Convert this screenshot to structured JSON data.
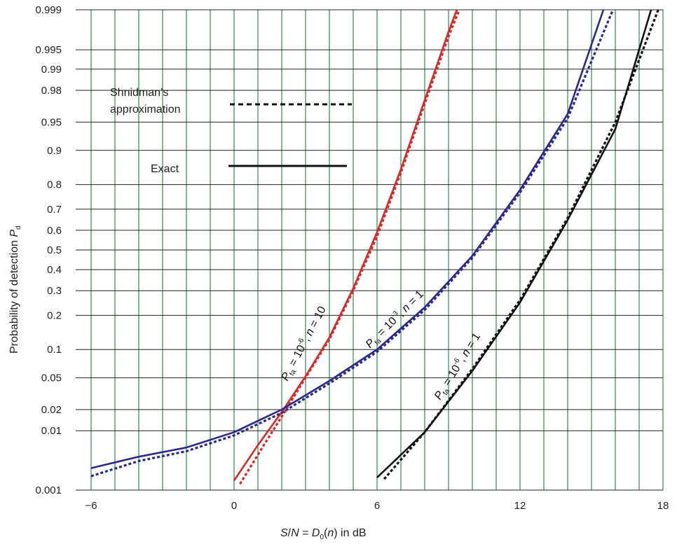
{
  "chart_data": {
    "type": "line",
    "xlabel": {
      "italic_main": "S",
      "sep": "/",
      "italic_n": "N",
      "eq": " = ",
      "d": "D",
      "d_sub": "0",
      "open": "(",
      "arg": "n",
      "close": ") in dB"
    },
    "ylabel": {
      "text": "Probability of detection ",
      "p": "P",
      "p_sub": "d"
    },
    "xlim": [
      -6,
      18
    ],
    "x_ticks": [
      "-6",
      "0",
      "6",
      "12",
      "18"
    ],
    "x_tick_values": [
      -6,
      0,
      6,
      12,
      18
    ],
    "y_ticks": [
      "0.001",
      "0.01",
      "0.02",
      "0.05",
      "0.1",
      "0.2",
      "0.3",
      "0.4",
      "0.5",
      "0.6",
      "0.7",
      "0.8",
      "0.9",
      "0.95",
      "0.98",
      "0.99",
      "0.995",
      "0.999"
    ],
    "y_scale": "normal-probability",
    "grid": true,
    "legend": {
      "placement": "top-left",
      "approx_label_line1": "Shnidman’s",
      "approx_label_line2": "approximation",
      "exact_label": "Exact"
    },
    "series": [
      {
        "color": "#d42a2a",
        "label_parts": {
          "p": "P",
          "p_sub": "fa",
          "eq": " = 10",
          "exp": "-6",
          "mid": ", ",
          "n": "n",
          "rest": " = 10"
        },
        "exact": {
          "x": [
            0.0,
            1.0,
            2.0,
            3.0,
            4.0,
            5.0,
            6.0,
            7.0,
            8.0,
            9.0,
            9.35
          ],
          "y": [
            0.0015,
            0.006,
            0.0185,
            0.052,
            0.13,
            0.31,
            0.59,
            0.85,
            0.973,
            0.9975,
            0.999
          ]
        },
        "approx": {
          "x": [
            0.25,
            1.0,
            2.0,
            3.0,
            4.0,
            5.0,
            6.0,
            7.0,
            8.0,
            9.0,
            9.45
          ],
          "y": [
            0.0013,
            0.0042,
            0.016,
            0.05,
            0.125,
            0.3,
            0.57,
            0.84,
            0.97,
            0.997,
            0.999
          ]
        }
      },
      {
        "color": "#2b2a8c",
        "label_parts": {
          "p": "P",
          "p_sub": "fa",
          "eq": " = 10",
          "exp": "-3",
          "mid": ", ",
          "n": "n",
          "rest": " = 1"
        },
        "exact": {
          "x": [
            -6,
            -4,
            -2,
            0,
            2,
            4,
            6,
            8,
            10,
            12,
            14,
            15.5
          ],
          "y": [
            0.0025,
            0.0039,
            0.0055,
            0.0095,
            0.02,
            0.046,
            0.1,
            0.23,
            0.47,
            0.78,
            0.96,
            0.999
          ]
        },
        "approx": {
          "x": [
            -6,
            -4,
            -2,
            0,
            2,
            4,
            6,
            8,
            10,
            12,
            14,
            15.9
          ],
          "y": [
            0.0018,
            0.0033,
            0.0048,
            0.0085,
            0.018,
            0.043,
            0.095,
            0.22,
            0.46,
            0.77,
            0.955,
            0.999
          ]
        }
      },
      {
        "color": "#111111",
        "label_parts": {
          "p": "P",
          "p_sub": "fa",
          "eq": " = 10",
          "exp": "-6",
          "mid": ", ",
          "n": "n",
          "rest": " = 1"
        },
        "exact": {
          "x": [
            6,
            8,
            10,
            12,
            14,
            16,
            17.5
          ],
          "y": [
            0.0017,
            0.0095,
            0.06,
            0.25,
            0.65,
            0.94,
            0.999
          ]
        },
        "approx": {
          "x": [
            6.3,
            8,
            10,
            12,
            14,
            16,
            17.8
          ],
          "y": [
            0.0016,
            0.0095,
            0.063,
            0.26,
            0.66,
            0.95,
            0.999
          ]
        }
      }
    ]
  }
}
